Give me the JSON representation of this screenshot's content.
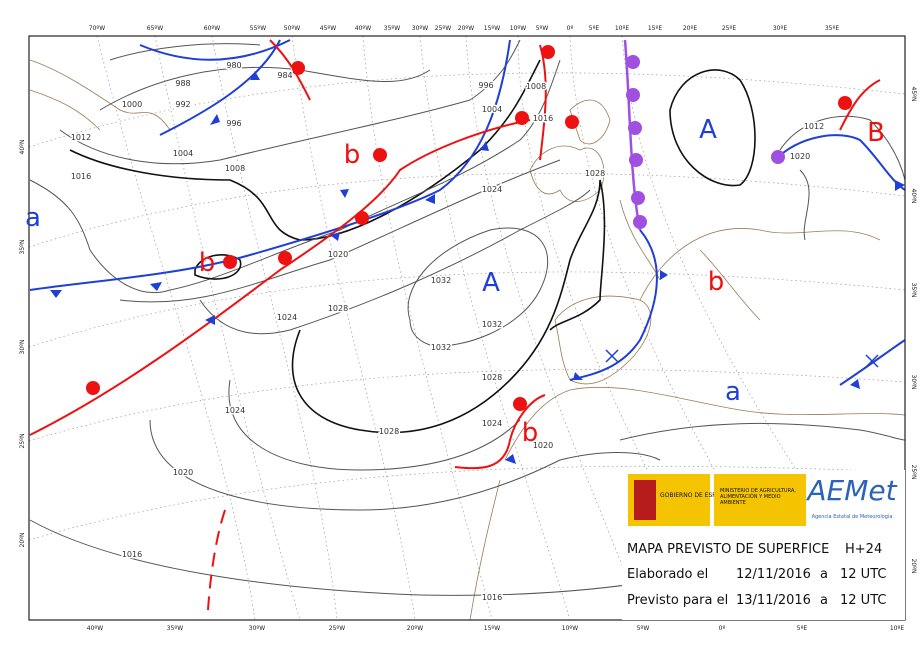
{
  "top_lon_labels": [
    "70ºW",
    "65ºW",
    "60ºW",
    "55ºW",
    "50ºW",
    "45ºW",
    "40ºW",
    "35ºW",
    "30ºW",
    "25ºW",
    "20ºW",
    "15ºW",
    "10ºW",
    "5ºW",
    "0º",
    "5ºE",
    "10ºE",
    "15ºE",
    "20ºE",
    "25ºE",
    "30ºE",
    "35ºE"
  ],
  "bottom_lon_labels": [
    "40ºW",
    "35ºW",
    "30ºW",
    "25ºW",
    "20ºW",
    "15ºW",
    "10ºW",
    "5ºW",
    "0º",
    "5ºE",
    "10ºE"
  ],
  "left_lat_labels": [
    "40ºN",
    "35ºN",
    "30ºN",
    "25ºN",
    "20ºN"
  ],
  "right_lat_labels": [
    "45ºN",
    "40ºN",
    "35ºN",
    "30ºN",
    "25ºN",
    "20ºN"
  ],
  "pressure_centers": [
    "A",
    "B",
    "a",
    "b",
    "b",
    "A",
    "b",
    "a",
    "b"
  ],
  "isobar_labels": [
    "1000",
    "988",
    "980",
    "984",
    "992",
    "996",
    "1004",
    "1008",
    "1012",
    "1016",
    "996",
    "1004",
    "1008",
    "1016",
    "1024",
    "1028",
    "1020",
    "1024",
    "1028",
    "1032",
    "1032",
    "1032",
    "1028",
    "1024",
    "1028",
    "1024",
    "1020",
    "1020",
    "1016",
    "1016",
    "1012",
    "1020"
  ],
  "info": {
    "government": "GOBIERNO DE ESPAÑA",
    "ministry": "MINISTERIO DE AGRICULTURA, ALIMENTACIÓN Y MEDIO AMBIENTE",
    "agency_logo": "AEMet",
    "agency_name": "Agencia Estatal de Meteorología",
    "title": "MAPA PREVISTO DE SUPERFICE",
    "lead": "H+24",
    "made_label": "Elaborado el",
    "made_date": "12/11/2016",
    "made_a": "a",
    "made_time": "12 UTC",
    "valid_label": "Previsto para el",
    "valid_date": "13/11/2016",
    "valid_a": "a",
    "valid_time": "12 UTC"
  }
}
